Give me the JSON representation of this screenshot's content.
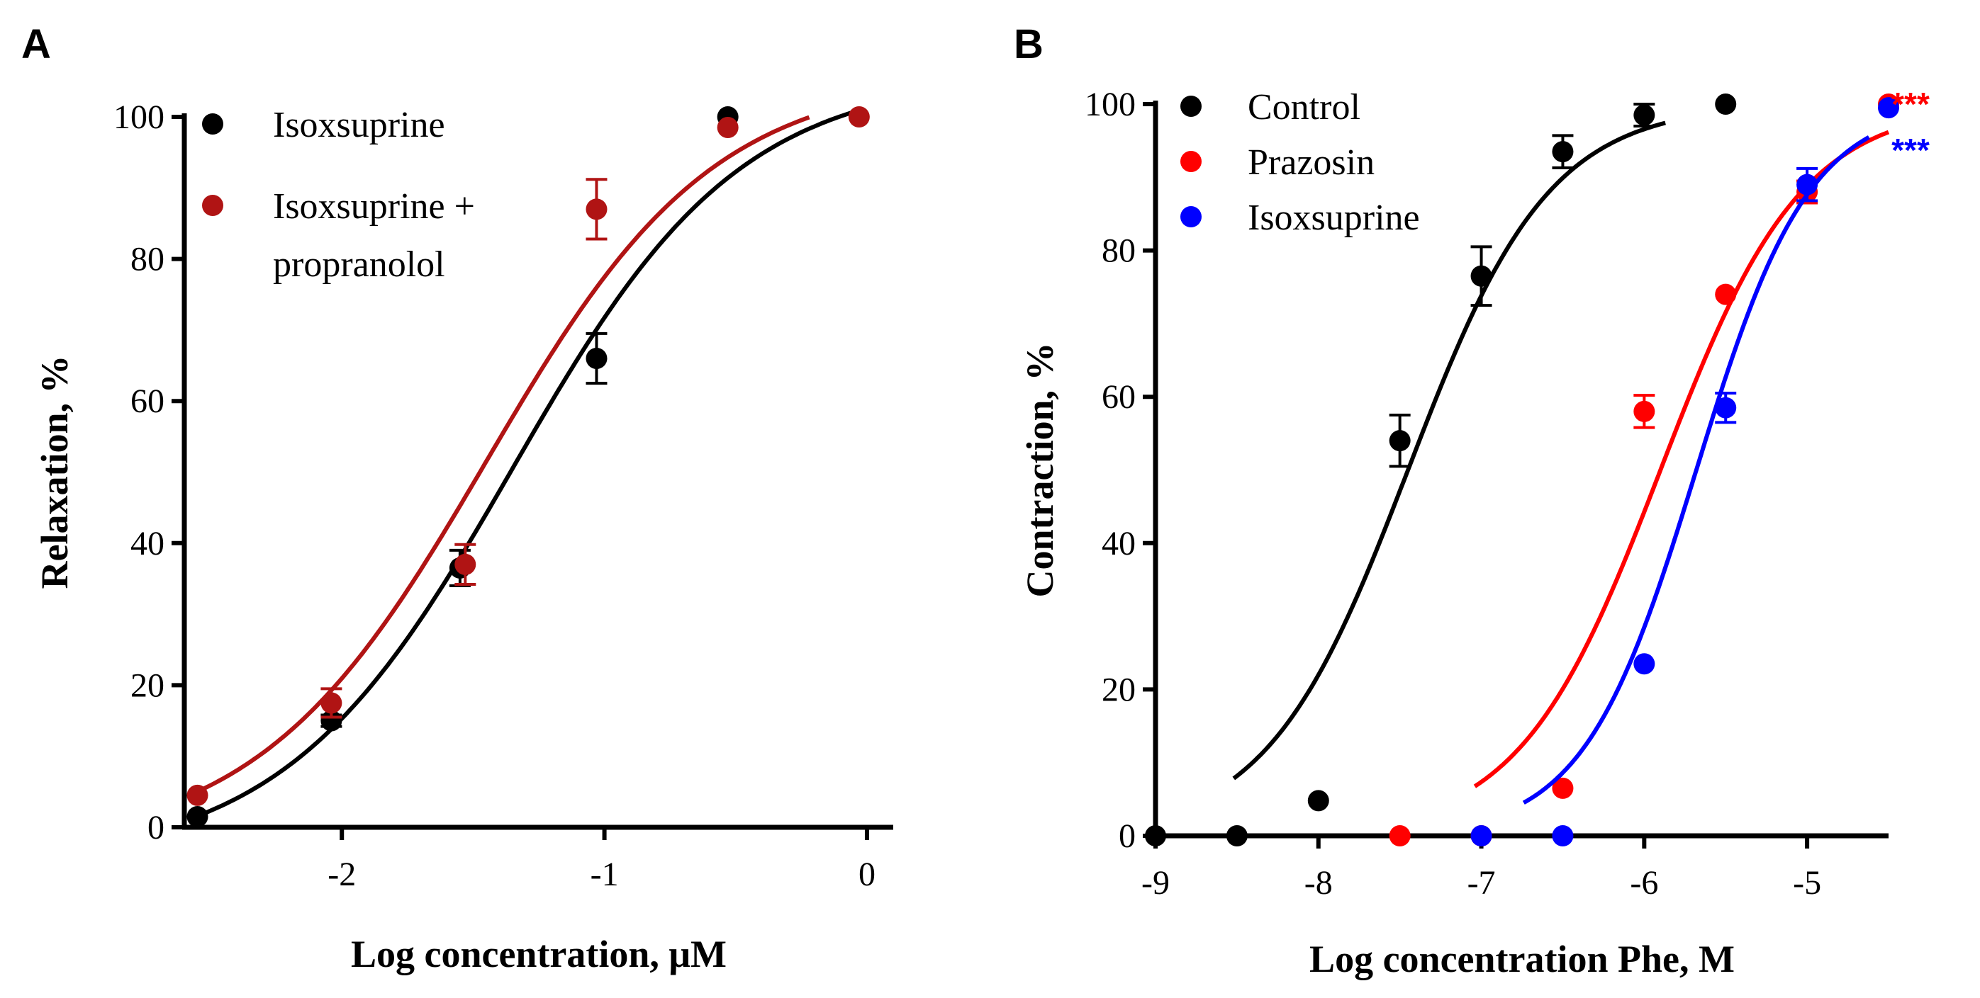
{
  "chart_data": [
    {
      "panel": "A",
      "type": "scatter",
      "xlabel": "Log concentration, μM",
      "ylabel": "Relaxation, %",
      "xlim": [
        -2.6,
        0.1
      ],
      "ylim": [
        0,
        100
      ],
      "xticks": [
        "-2",
        "-1",
        "0"
      ],
      "yticks": [
        "0",
        "20",
        "40",
        "60",
        "80",
        "100"
      ],
      "legend_position": "top-left",
      "series": [
        {
          "name": "Isoxsuprine",
          "color": "#000000",
          "x": [
            -2.55,
            -2.04,
            -1.55,
            -1.03,
            -0.53
          ],
          "y": [
            1.5,
            15,
            36.5,
            66,
            100
          ],
          "err": [
            0,
            0.8,
            2.5,
            3.5,
            0
          ],
          "fit": {
            "bottom": -5,
            "top": 106,
            "logEC50": -1.35,
            "hill": 1.0,
            "x_start": -2.57,
            "x_end": -0.03
          }
        },
        {
          "name_lines": [
            "Isoxsuprine +",
            "propranolol"
          ],
          "color": "#b01414",
          "x": [
            -2.55,
            -2.04,
            -1.53,
            -1.03,
            -0.53,
            -0.03
          ],
          "y": [
            4.5,
            17.5,
            37,
            87,
            98.5,
            100
          ],
          "err": [
            0,
            2.0,
            2.8,
            4.2,
            0,
            0
          ],
          "fit": {
            "bottom": -3,
            "top": 106,
            "logEC50": -1.45,
            "hill": 1.0,
            "x_start": -2.57,
            "x_end": -0.22
          }
        }
      ]
    },
    {
      "panel": "B",
      "type": "scatter",
      "xlabel": "Log concentration Phe, M",
      "ylabel": "Contraction, %",
      "xlim": [
        -9,
        -4.5
      ],
      "ylim": [
        0,
        100
      ],
      "xticks": [
        "-9",
        "-8",
        "-7",
        "-6",
        "-5"
      ],
      "yticks": [
        "0",
        "20",
        "40",
        "60",
        "80",
        "100"
      ],
      "legend_position": "top-left",
      "annotations": [
        {
          "text": "***",
          "color": "#ff0000"
        },
        {
          "text": "***",
          "color": "#0000ff"
        }
      ],
      "series": [
        {
          "name": "Control",
          "color": "#000000",
          "x": [
            -9,
            -8.5,
            -8,
            -7.5,
            -7,
            -6.5,
            -6,
            -5.5
          ],
          "y": [
            0,
            0,
            4.8,
            54,
            76.5,
            93.5,
            98.5,
            100
          ],
          "err": [
            0,
            0,
            0,
            3.5,
            4,
            2.2,
            1.5,
            0
          ],
          "fit": {
            "logEC50": -7.45,
            "hill": 1.0,
            "x_start": -8.52,
            "x_end": -5.87
          }
        },
        {
          "name": "Prazosin",
          "color": "#ff0000",
          "x": [
            -7.5,
            -7,
            -6.5,
            -6,
            -5.5,
            -5,
            -4.5
          ],
          "y": [
            0,
            0,
            6.5,
            58,
            74,
            88,
            100
          ],
          "err": [
            0,
            0,
            0,
            2.2,
            0,
            1.5,
            0
          ],
          "fit": {
            "logEC50": -5.9,
            "hill": 1.0,
            "x_start": -7.04,
            "x_end": -4.5
          }
        },
        {
          "name": "Isoxsuprine",
          "color": "#0000ff",
          "x": [
            -7,
            -6.5,
            -6,
            -5.5,
            -5,
            -4.5
          ],
          "y": [
            0,
            0,
            23.5,
            58.5,
            89,
            99.5
          ],
          "err": [
            0,
            0,
            0,
            2.0,
            2.2,
            0
          ],
          "fit": {
            "logEC50": -5.68,
            "hill": 1.25,
            "x_start": -6.74,
            "x_end": -4.62
          }
        }
      ]
    }
  ]
}
